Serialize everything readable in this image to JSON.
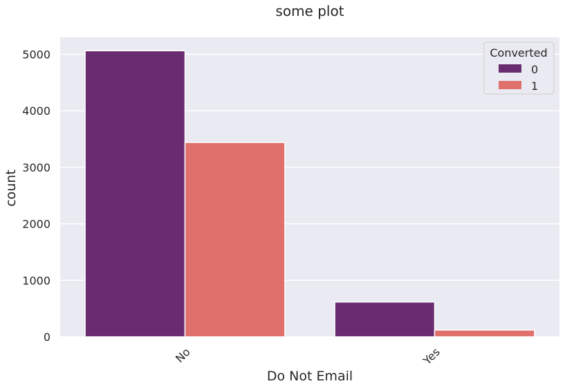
{
  "chart_data": {
    "type": "bar",
    "title": "some plot",
    "xlabel": "Do Not Email",
    "ylabel": "count",
    "categories": [
      "No",
      "Yes"
    ],
    "series": [
      {
        "name": "0",
        "values": [
          5063,
          616
        ],
        "color": "#6a2c70"
      },
      {
        "name": "1",
        "values": [
          3440,
          120
        ],
        "color": "#e0706c"
      }
    ],
    "ylim": [
      0,
      5300
    ],
    "yticks": [
      0,
      1000,
      2000,
      3000,
      4000,
      5000
    ],
    "legend": {
      "title": "Converted",
      "placement": "top-right"
    },
    "grid": true,
    "background": "#eaeaf2"
  }
}
